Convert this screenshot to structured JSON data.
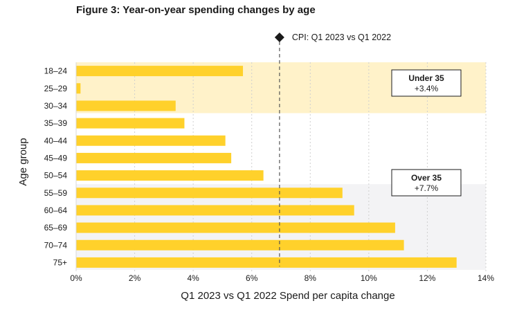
{
  "chart_data": {
    "type": "bar",
    "orientation": "horizontal",
    "title": "Figure 3: Year-on-year spending changes by age",
    "xlabel": "Q1 2023 vs Q1 2022 Spend per capita change",
    "ylabel": "Age group",
    "categories": [
      "18–24",
      "25–29",
      "30–34",
      "35–39",
      "40–44",
      "45–49",
      "50–54",
      "55–59",
      "60–64",
      "65–69",
      "70–74",
      "75+"
    ],
    "values": [
      5.7,
      0.15,
      3.4,
      3.7,
      5.1,
      5.3,
      6.4,
      9.1,
      9.5,
      10.9,
      11.2,
      13.0
    ],
    "xlim": [
      0,
      14
    ],
    "xticks": [
      0,
      2,
      4,
      6,
      8,
      10,
      12,
      14
    ],
    "xtick_labels": [
      "0%",
      "2%",
      "4%",
      "6%",
      "8%",
      "10%",
      "12%",
      "14%"
    ],
    "grid": true,
    "bar_color": "#FFD12B",
    "reference_line": {
      "label": "CPI: Q1 2023 vs Q1 2022",
      "value": 6.95
    },
    "groups": [
      {
        "name": "Under 35",
        "value_label": "+3.4%",
        "from_category": 0,
        "to_category": 2,
        "color": "#FFF2C9"
      },
      {
        "name": "Over 35",
        "value_label": "+7.7%",
        "from_category": 7,
        "to_category": 11,
        "color": "#F3F3F5"
      }
    ]
  }
}
